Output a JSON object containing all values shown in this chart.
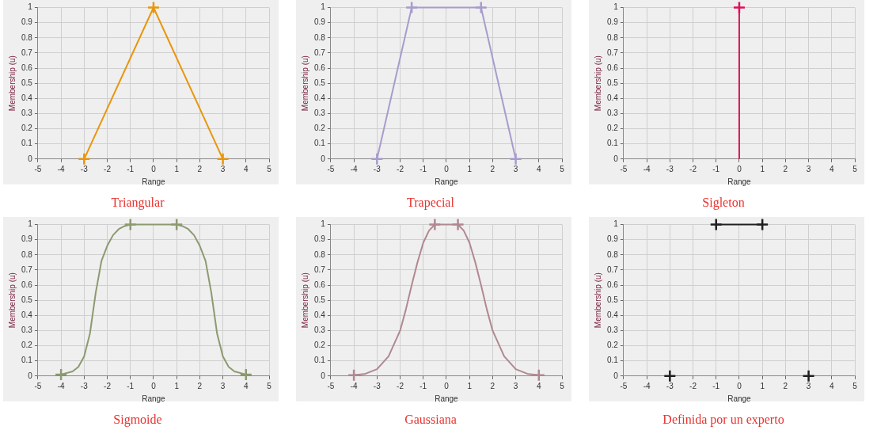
{
  "chart_data": [
    {
      "type": "line",
      "title": "Triangular",
      "xlabel": "Range",
      "ylabel": "Membership (u)",
      "xlim": [
        -5,
        5
      ],
      "xticks": [
        -5,
        -4,
        -3,
        -2,
        -1,
        0,
        1,
        2,
        3,
        4,
        5
      ],
      "ylim": [
        0,
        1
      ],
      "yticks": [
        0,
        0.1,
        0.2,
        0.3,
        0.4,
        0.5,
        0.6,
        0.7,
        0.8,
        0.9,
        1
      ],
      "grid": true,
      "legend": false,
      "series": [
        {
          "color": "#e8960c",
          "marker": "cross",
          "x": [
            -3,
            0,
            3
          ],
          "values": [
            0,
            1,
            0
          ]
        }
      ]
    },
    {
      "type": "line",
      "title": "Trapecial",
      "xlabel": "Range",
      "ylabel": "Membership (u)",
      "xlim": [
        -5,
        5
      ],
      "xticks": [
        -5,
        -4,
        -3,
        -2,
        -1,
        0,
        1,
        2,
        3,
        4,
        5
      ],
      "ylim": [
        0,
        1
      ],
      "yticks": [
        0,
        0.1,
        0.2,
        0.3,
        0.4,
        0.5,
        0.6,
        0.7,
        0.8,
        0.9,
        1
      ],
      "grid": true,
      "legend": false,
      "series": [
        {
          "color": "#a89ccc",
          "marker": "cross",
          "x": [
            -3,
            -1.5,
            1.5,
            3
          ],
          "values": [
            0,
            1,
            1,
            0
          ]
        }
      ]
    },
    {
      "type": "line",
      "title": "Sigleton",
      "xlabel": "Range",
      "ylabel": "Membership (u)",
      "xlim": [
        -5,
        5
      ],
      "xticks": [
        -5,
        -4,
        -3,
        -2,
        -1,
        0,
        1,
        2,
        3,
        4,
        5
      ],
      "ylim": [
        0,
        1
      ],
      "yticks": [
        0,
        0.1,
        0.2,
        0.3,
        0.4,
        0.5,
        0.6,
        0.7,
        0.8,
        0.9,
        1
      ],
      "grid": true,
      "legend": false,
      "series": [
        {
          "color": "#e0105a",
          "marker": "none",
          "x": [
            0,
            0
          ],
          "values": [
            0,
            1
          ]
        },
        {
          "type": "scatter",
          "color": "#e0105a",
          "marker": "cross",
          "x": [
            0
          ],
          "values": [
            1
          ]
        }
      ]
    },
    {
      "type": "line",
      "title": "Sigmoide",
      "xlabel": "Range",
      "ylabel": "Membership (u)",
      "xlim": [
        -5,
        5
      ],
      "xticks": [
        -5,
        -4,
        -3,
        -2,
        -1,
        0,
        1,
        2,
        3,
        4,
        5
      ],
      "ylim": [
        0,
        1
      ],
      "yticks": [
        0,
        0.1,
        0.2,
        0.3,
        0.4,
        0.5,
        0.6,
        0.7,
        0.8,
        0.9,
        1
      ],
      "grid": true,
      "legend": false,
      "series": [
        {
          "color": "#8c9a70",
          "marker": "none",
          "x": [
            -4,
            -3.5,
            -3.25,
            -3,
            -2.75,
            -2.5,
            -2.25,
            -2,
            -1.75,
            -1.5,
            -1.25,
            -1,
            0,
            1,
            1.25,
            1.5,
            1.75,
            2,
            2.25,
            2.5,
            2.75,
            3,
            3.25,
            3.5,
            4
          ],
          "values": [
            0.01,
            0.03,
            0.06,
            0.13,
            0.28,
            0.55,
            0.76,
            0.86,
            0.93,
            0.97,
            0.99,
            1,
            1,
            1,
            0.99,
            0.97,
            0.93,
            0.86,
            0.76,
            0.55,
            0.28,
            0.13,
            0.06,
            0.03,
            0.01
          ]
        },
        {
          "type": "scatter",
          "color": "#8c9a70",
          "marker": "cross",
          "x": [
            -4,
            -1,
            1,
            4
          ],
          "values": [
            0.01,
            1,
            1,
            0.01
          ]
        }
      ]
    },
    {
      "type": "line",
      "title": "Gaussiana",
      "xlabel": "Range",
      "ylabel": "Membership (u)",
      "xlim": [
        -5,
        5
      ],
      "xticks": [
        -5,
        -4,
        -3,
        -2,
        -1,
        0,
        1,
        2,
        3,
        4,
        5
      ],
      "ylim": [
        0,
        1
      ],
      "yticks": [
        0,
        0.1,
        0.2,
        0.3,
        0.4,
        0.5,
        0.6,
        0.7,
        0.8,
        0.9,
        1
      ],
      "grid": true,
      "legend": false,
      "series": [
        {
          "color": "#b08890",
          "marker": "none",
          "x": [
            -4,
            -3.5,
            -3,
            -2.5,
            -2,
            -1.75,
            -1.5,
            -1.25,
            -1,
            -0.75,
            -0.5,
            0,
            0.5,
            0.75,
            1,
            1.25,
            1.5,
            1.75,
            2,
            2.5,
            3,
            3.5,
            4
          ],
          "values": [
            0.005,
            0.015,
            0.045,
            0.13,
            0.3,
            0.44,
            0.6,
            0.75,
            0.88,
            0.96,
            1,
            1,
            1,
            0.96,
            0.88,
            0.75,
            0.6,
            0.44,
            0.3,
            0.13,
            0.045,
            0.015,
            0.005
          ]
        },
        {
          "type": "scatter",
          "color": "#b08890",
          "marker": "cross",
          "x": [
            -4,
            -0.5,
            0.5,
            4
          ],
          "values": [
            0.005,
            1,
            1,
            0.005
          ]
        }
      ]
    },
    {
      "type": "line",
      "title": "Definida por un experto",
      "xlabel": "Range",
      "ylabel": "Membership (u)",
      "xlim": [
        -5,
        5
      ],
      "xticks": [
        -5,
        -4,
        -3,
        -2,
        -1,
        0,
        1,
        2,
        3,
        4,
        5
      ],
      "ylim": [
        0,
        1
      ],
      "yticks": [
        0,
        0.1,
        0.2,
        0.3,
        0.4,
        0.5,
        0.6,
        0.7,
        0.8,
        0.9,
        1
      ],
      "grid": true,
      "legend": false,
      "series": [
        {
          "color": "#202020",
          "marker": "none",
          "x": [
            -1,
            1
          ],
          "values": [
            1,
            1
          ]
        },
        {
          "type": "scatter",
          "color": "#202020",
          "marker": "cross",
          "x": [
            -3,
            -1,
            1,
            3
          ],
          "values": [
            0,
            1,
            1,
            0
          ]
        }
      ]
    }
  ]
}
